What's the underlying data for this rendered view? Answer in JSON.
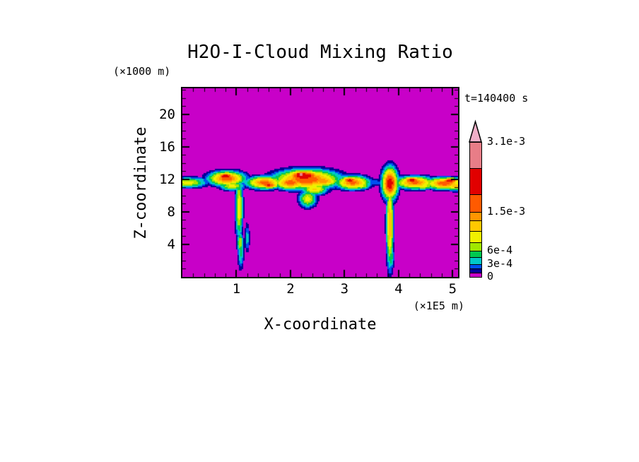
{
  "title": "H2O-I-Cloud Mixing Ratio",
  "annotations": {
    "time_label": "t=140400 s",
    "y_unit_label": "(×1000 m)",
    "x_unit_label": "(×1E5 m)"
  },
  "axes": {
    "x": {
      "label": "X-coordinate",
      "tick_values": [
        1,
        2,
        3,
        4,
        5
      ],
      "tick_labels": [
        "1",
        "2",
        "3",
        "4",
        "5"
      ],
      "minor_step": 0.2,
      "range": [
        0,
        5.1
      ]
    },
    "z": {
      "label": "Z-coordinate",
      "tick_values": [
        4,
        8,
        12,
        16,
        20
      ],
      "tick_labels": [
        "4",
        "8",
        "12",
        "16",
        "20"
      ],
      "minor_step": 1,
      "range": [
        0,
        23.2
      ]
    }
  },
  "chart_data": {
    "type": "heatmap",
    "title": "H2O-I-Cloud Mixing Ratio",
    "xlabel": "X-coordinate (×1E5 m)",
    "ylabel": "Z-coordinate (×1000 m)",
    "value_name": "H2O-I cloud mixing ratio",
    "time_label": "t=140400 s",
    "time_s": 140400,
    "x_range": [
      0,
      5.1
    ],
    "z_range": [
      0,
      23.2
    ],
    "background_color": "#C800C8",
    "levels": [
      0,
      0.0001,
      0.0002,
      0.0003,
      0.00045,
      0.0006,
      0.0008,
      0.00105,
      0.0013,
      0.0015,
      0.0019,
      0.0025,
      0.0031
    ],
    "colors": [
      "#C800C8",
      "#000096",
      "#0050F0",
      "#00C8C8",
      "#00C850",
      "#A0E600",
      "#F0F000",
      "#FFC800",
      "#FF9600",
      "#FF5A00",
      "#E10000",
      "#E87D87"
    ],
    "over_color": "#F0AFC8",
    "colorbar_ticks": [
      {
        "value": 0,
        "label": "0"
      },
      {
        "value": 0.0003,
        "label": "3e-4"
      },
      {
        "value": 0.0006,
        "label": "6e-4"
      },
      {
        "value": 0.0015,
        "label": "1.5e-3"
      },
      {
        "value": 0.0031,
        "label": "3.1e-3"
      }
    ],
    "clouds": [
      {
        "x": 0.1,
        "z": 11.6,
        "rx": 0.3,
        "rz": 0.55,
        "v": 0.0009
      },
      {
        "x": 0.3,
        "z": 11.9,
        "rx": 0.18,
        "rz": 0.35,
        "v": 0.0004
      },
      {
        "x": 0.82,
        "z": 12.1,
        "rx": 0.28,
        "rz": 0.75,
        "v": 0.0017
      },
      {
        "x": 0.8,
        "z": 12.4,
        "rx": 0.14,
        "rz": 0.35,
        "v": 0.0023
      },
      {
        "x": 0.92,
        "z": 11.2,
        "rx": 0.2,
        "rz": 0.5,
        "v": 0.0009
      },
      {
        "x": 1.05,
        "z": 8.5,
        "rx": 0.06,
        "rz": 3.2,
        "v": 0.001
      },
      {
        "x": 1.07,
        "z": 4.2,
        "rx": 0.05,
        "rz": 1.2,
        "v": 0.0008
      },
      {
        "x": 1.08,
        "z": 3.0,
        "rx": 0.05,
        "rz": 1.8,
        "v": 0.0005
      },
      {
        "x": 1.2,
        "z": 4.8,
        "rx": 0.04,
        "rz": 1.6,
        "v": 0.0004
      },
      {
        "x": 1.25,
        "z": 11.8,
        "rx": 0.18,
        "rz": 0.4,
        "v": 0.00018
      },
      {
        "x": 1.52,
        "z": 11.6,
        "rx": 0.28,
        "rz": 0.65,
        "v": 0.0016
      },
      {
        "x": 1.6,
        "z": 11.3,
        "rx": 0.15,
        "rz": 0.35,
        "v": 0.002
      },
      {
        "x": 2.0,
        "z": 11.6,
        "rx": 0.25,
        "rz": 0.7,
        "v": 0.0017
      },
      {
        "x": 2.3,
        "z": 12.0,
        "rx": 0.5,
        "rz": 1.0,
        "v": 0.0018
      },
      {
        "x": 2.25,
        "z": 12.4,
        "rx": 0.28,
        "rz": 0.6,
        "v": 0.0024
      },
      {
        "x": 2.2,
        "z": 12.6,
        "rx": 0.12,
        "rz": 0.3,
        "v": 0.0029
      },
      {
        "x": 2.6,
        "z": 11.8,
        "rx": 0.25,
        "rz": 0.6,
        "v": 0.0015
      },
      {
        "x": 2.45,
        "z": 10.8,
        "rx": 0.2,
        "rz": 0.6,
        "v": 0.0011
      },
      {
        "x": 2.32,
        "z": 9.6,
        "rx": 0.14,
        "rz": 0.9,
        "v": 0.0009
      },
      {
        "x": 2.85,
        "z": 11.5,
        "rx": 0.15,
        "rz": 0.35,
        "v": 0.00018
      },
      {
        "x": 3.15,
        "z": 11.6,
        "rx": 0.26,
        "rz": 0.7,
        "v": 0.0016
      },
      {
        "x": 3.1,
        "z": 11.9,
        "rx": 0.13,
        "rz": 0.35,
        "v": 0.0021
      },
      {
        "x": 3.3,
        "z": 11.2,
        "rx": 0.15,
        "rz": 0.4,
        "v": 0.0009
      },
      {
        "x": 3.55,
        "z": 11.6,
        "rx": 0.22,
        "rz": 0.45,
        "v": 0.00028
      },
      {
        "x": 3.72,
        "z": 11.4,
        "rx": 0.15,
        "rz": 0.35,
        "v": 0.00022
      },
      {
        "x": 3.84,
        "z": 11.5,
        "rx": 0.12,
        "rz": 1.6,
        "v": 0.0022
      },
      {
        "x": 3.84,
        "z": 6.5,
        "rx": 0.055,
        "rz": 4.5,
        "v": 0.0013
      },
      {
        "x": 3.86,
        "z": 2.5,
        "rx": 0.05,
        "rz": 1.5,
        "v": 0.0006
      },
      {
        "x": 4.0,
        "z": 11.8,
        "rx": 0.15,
        "rz": 0.3,
        "v": 0.0002
      },
      {
        "x": 4.3,
        "z": 11.6,
        "rx": 0.3,
        "rz": 0.65,
        "v": 0.0016
      },
      {
        "x": 4.25,
        "z": 11.9,
        "rx": 0.15,
        "rz": 0.35,
        "v": 0.0021
      },
      {
        "x": 4.45,
        "z": 11.2,
        "rx": 0.18,
        "rz": 0.4,
        "v": 0.001
      },
      {
        "x": 4.62,
        "z": 11.5,
        "rx": 0.12,
        "rz": 0.3,
        "v": 0.0002
      },
      {
        "x": 4.85,
        "z": 11.5,
        "rx": 0.3,
        "rz": 0.6,
        "v": 0.0017
      },
      {
        "x": 4.95,
        "z": 11.8,
        "rx": 0.15,
        "rz": 0.35,
        "v": 0.0021
      },
      {
        "x": 5.05,
        "z": 11.2,
        "rx": 0.2,
        "rz": 0.5,
        "v": 0.0012
      }
    ]
  }
}
